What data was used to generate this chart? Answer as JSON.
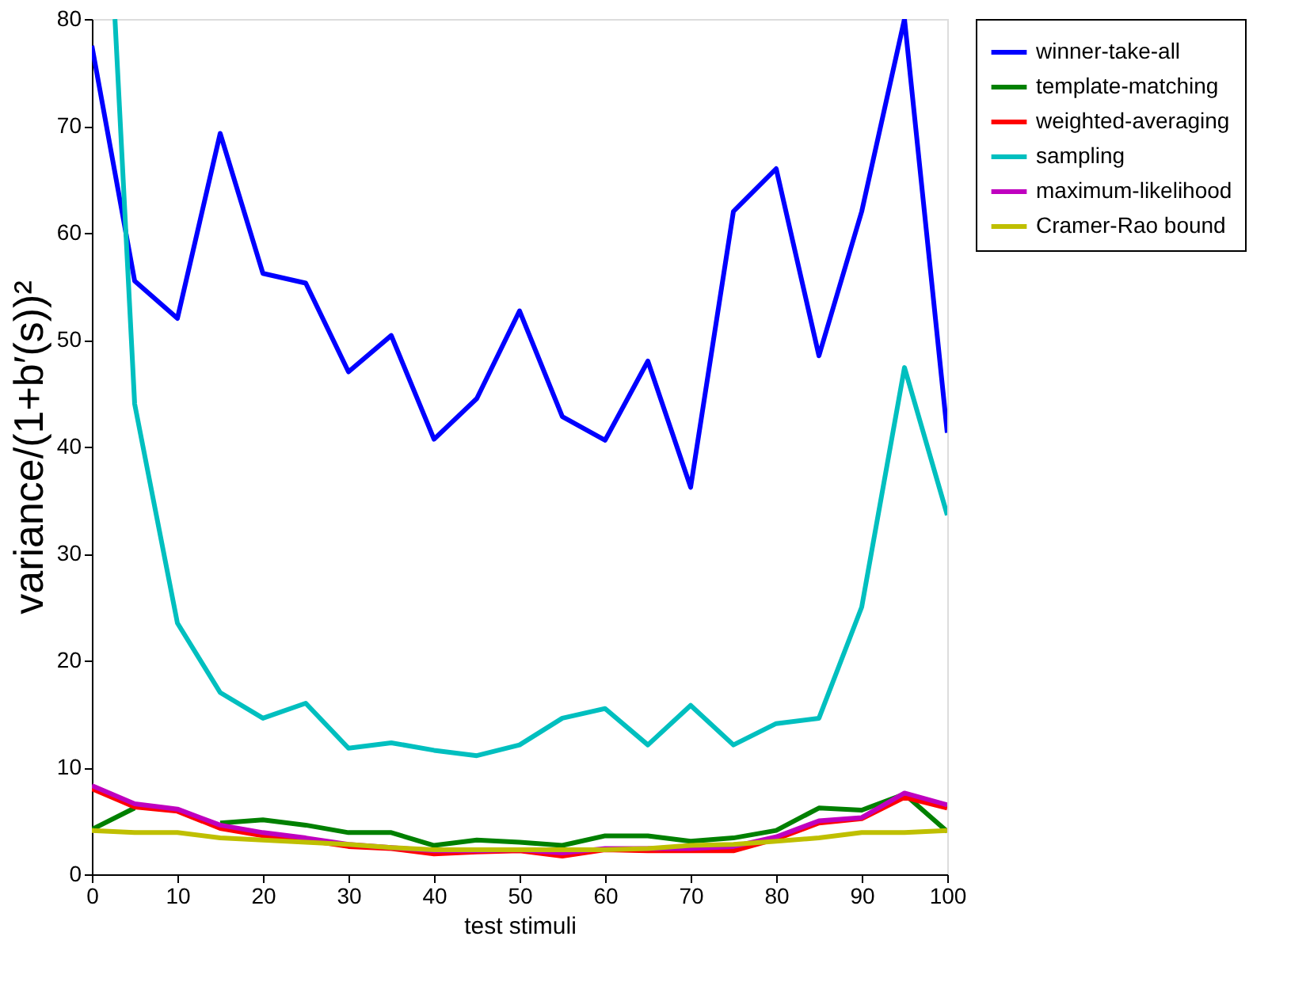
{
  "chart_data": {
    "type": "line",
    "xlabel": "test stimuli",
    "ylabel": "variance/(1+b′(s))²",
    "x": [
      0,
      5,
      10,
      15,
      20,
      25,
      30,
      35,
      40,
      45,
      50,
      55,
      60,
      65,
      70,
      75,
      80,
      85,
      90,
      95,
      100
    ],
    "xlim": [
      0,
      100
    ],
    "xticks": [
      0,
      10,
      20,
      30,
      40,
      50,
      60,
      70,
      80,
      90,
      100
    ],
    "ylim": [
      0,
      80
    ],
    "yticks": [
      0,
      10,
      20,
      30,
      40,
      50,
      60,
      70,
      80
    ],
    "grid": false,
    "legend": "right",
    "line_style": "solid",
    "marker": "none",
    "series": [
      {
        "name": "winner-take-all",
        "color": "#0000ff",
        "values": [
          77.5,
          55.5,
          52,
          69.3,
          56.2,
          55.3,
          47,
          50.4,
          40.7,
          44.5,
          52.7,
          42.8,
          40.6,
          48,
          36.2,
          62,
          66,
          48.5,
          62,
          80,
          41.3
        ]
      },
      {
        "name": "template-matching",
        "color": "#008000",
        "values": [
          4.2,
          6.2,
          null,
          4.8,
          5.1,
          4.6,
          3.9,
          3.9,
          2.7,
          3.2,
          3,
          2.7,
          3.6,
          3.6,
          3.1,
          3.4,
          4.1,
          6.2,
          6,
          7.5,
          4
        ]
      },
      {
        "name": "weighted-averaging",
        "color": "#ff0000",
        "values": [
          8,
          6.3,
          5.9,
          4.3,
          3.6,
          3.2,
          2.6,
          2.4,
          1.9,
          2.1,
          2.2,
          1.7,
          2.3,
          2.2,
          2.2,
          2.2,
          3.3,
          4.8,
          5.2,
          7.2,
          6.2
        ]
      },
      {
        "name": "sampling",
        "color": "#00bfbf",
        "x": [
          2.7,
          5,
          10,
          15,
          20,
          25,
          30,
          35,
          40,
          45,
          50,
          55,
          60,
          65,
          70,
          75,
          80,
          85,
          90,
          95,
          100
        ],
        "values": [
          80,
          44,
          23.5,
          17,
          14.6,
          16,
          11.8,
          12.3,
          11.6,
          11.1,
          12.1,
          14.6,
          15.5,
          12.1,
          15.8,
          12.1,
          14.1,
          14.6,
          25,
          47.4,
          33.6
        ]
      },
      {
        "name": "maximum-likelihood",
        "color": "#bf00bf",
        "values": [
          8.3,
          6.6,
          6.1,
          4.6,
          3.9,
          3.4,
          2.8,
          2.5,
          2.2,
          2.2,
          2.3,
          2,
          2.4,
          2.4,
          2.4,
          2.6,
          3.5,
          5,
          5.3,
          7.6,
          6.5
        ]
      },
      {
        "name": "Cramer-Rao bound",
        "color": "#bfbf00",
        "values": [
          4.1,
          3.9,
          3.9,
          3.4,
          3.2,
          3,
          2.8,
          2.5,
          2.3,
          2.3,
          2.3,
          2.3,
          2.3,
          2.4,
          2.7,
          2.8,
          3.1,
          3.4,
          3.9,
          3.9,
          4.1
        ]
      }
    ]
  }
}
